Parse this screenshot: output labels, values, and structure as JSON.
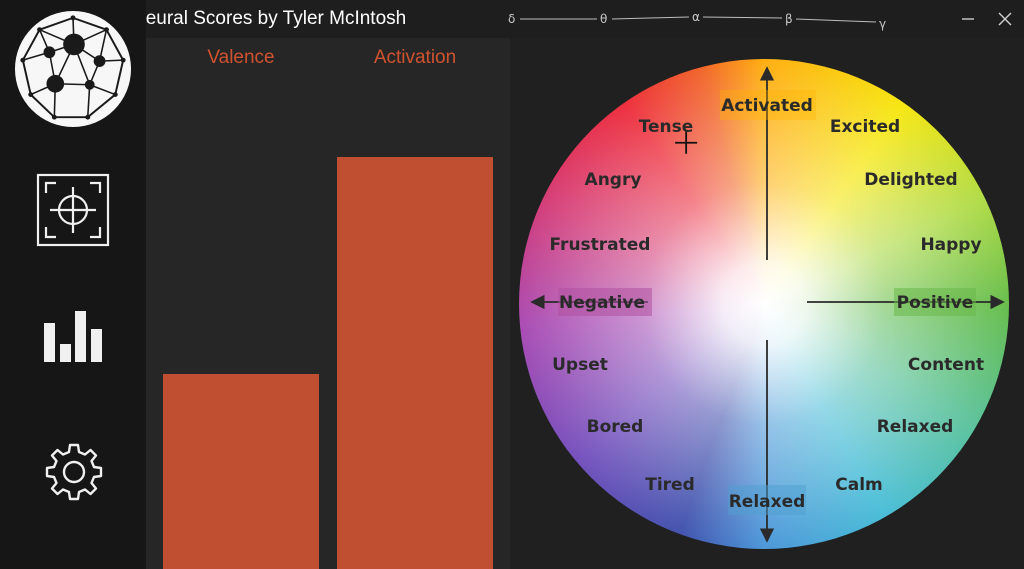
{
  "app": {
    "title": "Neural Scores by Tyler McIntosh"
  },
  "bands": [
    "δ",
    "θ",
    "α",
    "β",
    "γ"
  ],
  "sidebar": {
    "items": [
      {
        "icon": "target-icon"
      },
      {
        "icon": "bar-chart-icon"
      },
      {
        "icon": "gear-icon"
      }
    ]
  },
  "scores": {
    "valence_label": "Valence",
    "activation_label": "Activation",
    "valence": 0.368,
    "activation": 0.776,
    "bar_color": "#c04e30",
    "label_color": "#d0532f"
  },
  "wheel": {
    "top_label": "Activated",
    "bottom_label": "Relaxed",
    "left_label": "Negative",
    "right_label": "Positive",
    "emotions": [
      "Tense",
      "Excited",
      "Angry",
      "Delighted",
      "Frustrated",
      "Happy",
      "Upset",
      "Content",
      "Bored",
      "Relaxed",
      "Tired",
      "Calm"
    ],
    "cursor": {
      "valence": -0.33,
      "activation": 0.65
    }
  }
}
